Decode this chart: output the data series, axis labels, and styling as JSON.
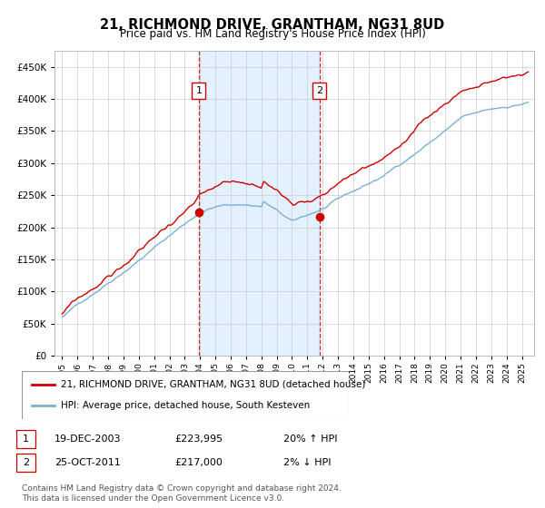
{
  "title": "21, RICHMOND DRIVE, GRANTHAM, NG31 8UD",
  "subtitle": "Price paid vs. HM Land Registry's House Price Index (HPI)",
  "legend_line1": "21, RICHMOND DRIVE, GRANTHAM, NG31 8UD (detached house)",
  "legend_line2": "HPI: Average price, detached house, South Kesteven",
  "footnote1": "Contains HM Land Registry data © Crown copyright and database right 2024.",
  "footnote2": "This data is licensed under the Open Government Licence v3.0.",
  "sale1_label": "1",
  "sale1_date": "19-DEC-2003",
  "sale1_price": "£223,995",
  "sale1_hpi": "20% ↑ HPI",
  "sale1_year": 2003.917,
  "sale1_price_val": 223995,
  "sale2_label": "2",
  "sale2_date": "25-OCT-2011",
  "sale2_price": "£217,000",
  "sale2_hpi": "2% ↓ HPI",
  "sale2_year": 2011.792,
  "sale2_price_val": 217000,
  "red_color": "#cc0000",
  "blue_color": "#7bafd4",
  "bg_shaded": "#ddeeff",
  "grid_color": "#cccccc",
  "ylim_min": 0,
  "ylim_max": 475000,
  "yticks": [
    0,
    50000,
    100000,
    150000,
    200000,
    250000,
    300000,
    350000,
    400000,
    450000
  ],
  "xlim_min": 1994.5,
  "xlim_max": 2025.8,
  "xtick_years": [
    1995,
    1996,
    1997,
    1998,
    1999,
    2000,
    2001,
    2002,
    2003,
    2004,
    2005,
    2006,
    2007,
    2008,
    2009,
    2010,
    2011,
    2012,
    2013,
    2014,
    2015,
    2016,
    2017,
    2018,
    2019,
    2020,
    2021,
    2022,
    2023,
    2024,
    2025
  ]
}
